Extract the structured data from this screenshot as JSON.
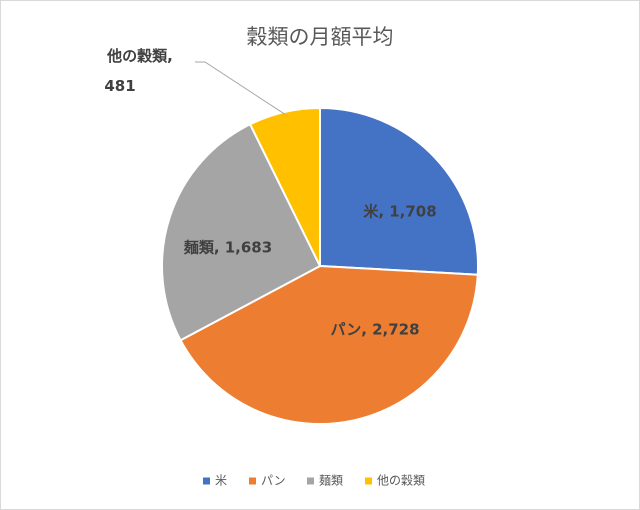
{
  "chart_data": {
    "type": "pie",
    "title": "穀類の月額平均",
    "categories": [
      "米",
      "パン",
      "麺類",
      "他の穀類"
    ],
    "values": [
      1708,
      2728,
      1683,
      481
    ],
    "value_labels": [
      "米, 1,708",
      "パン, 2,728",
      "麺類, 1,683",
      "他の穀類, 481"
    ],
    "colors": [
      "#4472c4",
      "#ed7d31",
      "#a5a5a5",
      "#ffc000"
    ],
    "legend": "bottom"
  }
}
